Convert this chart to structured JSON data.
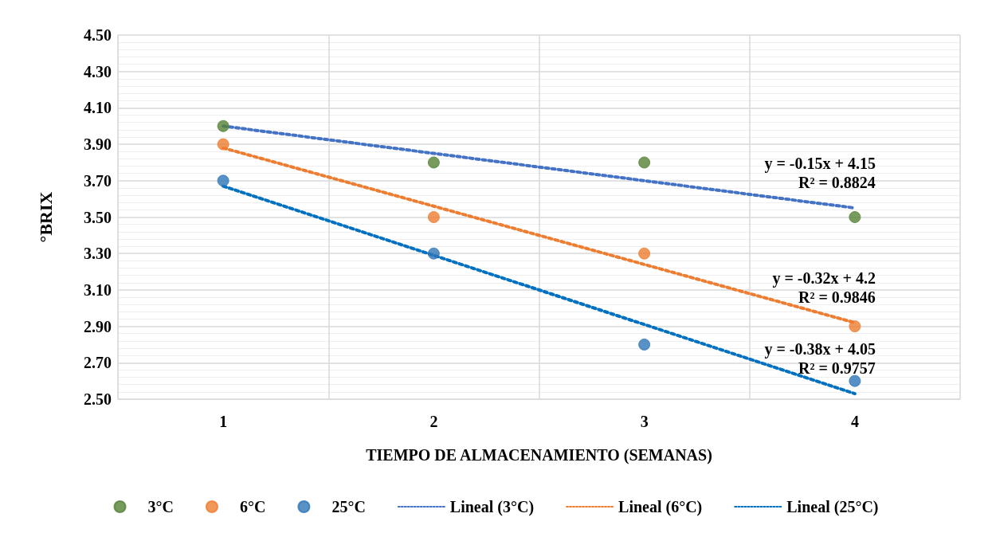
{
  "chart_data": {
    "type": "scatter",
    "xlabel": "TIEMPO DE ALMACENAMIENTO (SEMANAS)",
    "ylabel": "°BRIX",
    "categories": [
      "1",
      "2",
      "3",
      "4"
    ],
    "series": [
      {
        "name": "3°C",
        "color": "#548235",
        "values": [
          4.0,
          3.8,
          3.8,
          3.5
        ]
      },
      {
        "name": "6°C",
        "color": "#ed7d31",
        "values": [
          3.9,
          3.5,
          3.3,
          2.9
        ]
      },
      {
        "name": "25°C",
        "color": "#2e75b6",
        "values": [
          3.7,
          3.3,
          2.8,
          2.6
        ]
      },
      {
        "name": "Lineal (3°C)",
        "type": "line",
        "color": "#4472c4",
        "marker": "none",
        "line_style": "dotted",
        "values": [
          4.0,
          3.85,
          3.7,
          3.55
        ]
      },
      {
        "name": "Lineal (6°C)",
        "type": "line",
        "color": "#ed7d31",
        "marker": "none",
        "line_style": "dotted",
        "values": [
          3.88,
          3.56,
          3.24,
          2.92
        ]
      },
      {
        "name": "Lineal (25°C)",
        "type": "line",
        "color": "#0070c0",
        "marker": "none",
        "line_style": "dotted",
        "values": [
          3.67,
          3.29,
          2.91,
          2.53
        ]
      }
    ],
    "ylim": [
      2.5,
      4.5
    ],
    "yticks": [
      {
        "value": 2.5,
        "label": "2.50"
      },
      {
        "value": 2.7,
        "label": "2.70"
      },
      {
        "value": 2.9,
        "label": "2.90"
      },
      {
        "value": 3.1,
        "label": "3.10"
      },
      {
        "value": 3.3,
        "label": "3.30"
      },
      {
        "value": 3.5,
        "label": "3.50"
      },
      {
        "value": 3.7,
        "label": "3.70"
      },
      {
        "value": 3.9,
        "label": "3.90"
      },
      {
        "value": 4.1,
        "label": "4.10"
      },
      {
        "value": 4.3,
        "label": "4.30"
      },
      {
        "value": 4.5,
        "label": "4.50"
      }
    ],
    "annotations": [
      {
        "text": "y = -0.15x + 4.15\nR² = 0.8824",
        "x": "4",
        "y": 3.55
      },
      {
        "text": "y = -0.32x + 4.2\nR² = 0.9846",
        "x": "4",
        "y": 2.92
      },
      {
        "text": "y = -0.38x + 4.05\nR² = 0.9757",
        "x": "4",
        "y": 2.53
      }
    ],
    "marker": "circle",
    "grid": true,
    "legend": "bottom"
  }
}
